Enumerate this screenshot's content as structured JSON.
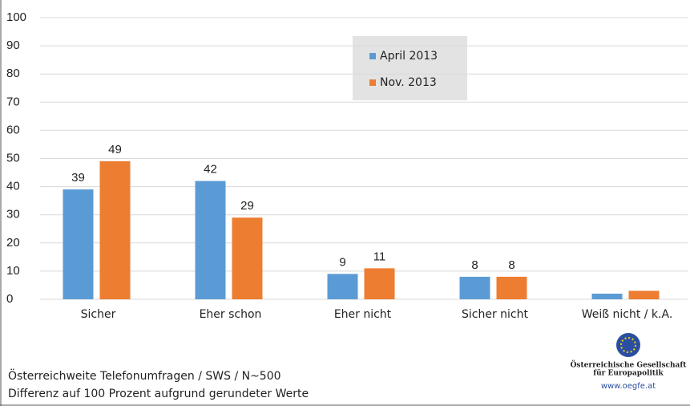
{
  "chart_data": {
    "type": "bar",
    "categories": [
      "Sicher",
      "Eher schon",
      "Eher nicht",
      "Sicher nicht",
      "Weiß nicht / k.A."
    ],
    "series": [
      {
        "name": "April 2013",
        "color": "#5b9bd5",
        "values": [
          39,
          42,
          9,
          8,
          2
        ],
        "value_labels": [
          39,
          42,
          9,
          8,
          null
        ]
      },
      {
        "name": "Nov. 2013",
        "color": "#ed7d31",
        "values": [
          49,
          29,
          11,
          8,
          3
        ],
        "value_labels": [
          49,
          29,
          11,
          8,
          null
        ]
      }
    ],
    "ylim": [
      0,
      100
    ],
    "yticks": [
      0,
      10,
      20,
      30,
      40,
      50,
      60,
      70,
      80,
      90,
      100
    ],
    "grid": true,
    "legend": "top",
    "notes": [
      "Österreichweite Telefonumfragen / SWS / N~500",
      "Differenz auf 100 Prozent aufgrund gerundeter Werte"
    ],
    "logo": {
      "name": [
        "Österreichische Gesellschaft",
        "für Europapolitik"
      ],
      "url": "www.oegfe.at"
    }
  }
}
